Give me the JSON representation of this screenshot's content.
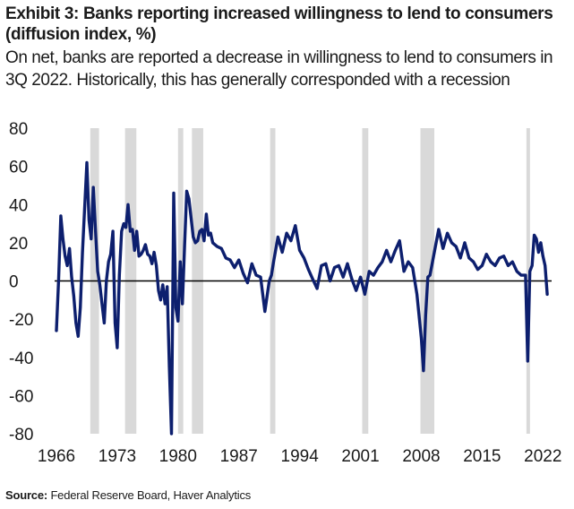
{
  "header": {
    "title": "Exhibit 3: Banks reporting increased willingness to lend to consumers (diffusion index, %)",
    "subtitle": "On net, banks are reported a decrease in willingness to lend to consumers in 3Q 2022. Historically, this has generally corresponded with a recession"
  },
  "footer": {
    "source_label": "Source:",
    "source_text": "Federal Reserve Board, Haver Analytics"
  },
  "chart_data": {
    "type": "line",
    "title": "Exhibit 3: Banks reporting increased willingness to lend to consumers (diffusion index, %)",
    "xlabel": "",
    "ylabel": "",
    "ylim": [
      -80,
      80
    ],
    "xlim": [
      1966,
      2023
    ],
    "yticks": [
      80,
      60,
      40,
      20,
      0,
      -20,
      -40,
      -60,
      -80
    ],
    "xticks": [
      1966,
      1973,
      1980,
      1987,
      1994,
      2001,
      2008,
      2015,
      2022
    ],
    "grid": false,
    "legend": "none",
    "colors": {
      "line": "#0d1f6e",
      "recession": "#d9d9d9",
      "zero_line": "#000000"
    },
    "recessions": [
      [
        1969.9,
        1970.9
      ],
      [
        1973.9,
        1975.2
      ],
      [
        1980.0,
        1980.6
      ],
      [
        1981.6,
        1982.9
      ],
      [
        1990.6,
        1991.2
      ],
      [
        2001.2,
        2001.9
      ],
      [
        2007.9,
        2009.5
      ],
      [
        2020.1,
        2020.4
      ]
    ],
    "series": [
      {
        "x": [
          1966.0,
          1966.25,
          1966.5,
          1966.75,
          1967.0,
          1967.25,
          1967.5,
          1967.75,
          1968.0,
          1968.25,
          1968.5,
          1968.75,
          1969.0,
          1969.25,
          1969.5,
          1969.75,
          1970.0,
          1970.25,
          1970.5,
          1970.75,
          1971.0,
          1971.25,
          1971.5,
          1971.75,
          1972.0,
          1972.25,
          1972.5,
          1972.75,
          1973.0,
          1973.25,
          1973.5,
          1973.75,
          1974.0,
          1974.25,
          1974.5,
          1974.75,
          1975.0,
          1975.25,
          1975.5,
          1975.75,
          1976.0,
          1976.25,
          1976.5,
          1976.75,
          1977.0,
          1977.25,
          1977.5,
          1977.75,
          1978.0,
          1978.25,
          1978.5,
          1978.75,
          1979.0,
          1979.25,
          1979.5,
          1979.75,
          1980.0,
          1980.25,
          1980.5,
          1980.75,
          1981.0,
          1981.25,
          1981.5,
          1981.75,
          1982.0,
          1982.25,
          1982.5,
          1982.75,
          1983.0,
          1983.25,
          1983.5,
          1983.75,
          1984.0,
          1984.5,
          1985.0,
          1985.5,
          1986.0,
          1986.5,
          1987.0,
          1987.5,
          1988.0,
          1988.5,
          1989.0,
          1989.5,
          1990.0,
          1990.5,
          1990.75,
          1991.0,
          1991.5,
          1992.0,
          1992.5,
          1993.0,
          1993.5,
          1994.0,
          1994.5,
          1995.0,
          1995.5,
          1996.0,
          1996.5,
          1997.0,
          1997.5,
          1998.0,
          1998.5,
          1999.0,
          1999.5,
          2000.0,
          2000.5,
          2001.0,
          2001.5,
          2002.0,
          2002.5,
          2003.0,
          2003.5,
          2004.0,
          2004.5,
          2005.0,
          2005.5,
          2006.0,
          2006.5,
          2007.0,
          2007.5,
          2008.0,
          2008.25,
          2008.5,
          2008.75,
          2009.0,
          2009.5,
          2010.0,
          2010.5,
          2011.0,
          2011.5,
          2012.0,
          2012.5,
          2013.0,
          2013.5,
          2014.0,
          2014.5,
          2015.0,
          2015.5,
          2016.0,
          2016.5,
          2017.0,
          2017.5,
          2018.0,
          2018.5,
          2019.0,
          2019.5,
          2020.0,
          2020.25,
          2020.5,
          2020.75,
          2021.0,
          2021.25,
          2021.5,
          2021.75,
          2022.0,
          2022.25,
          2022.5
        ],
        "values": [
          -26,
          0,
          34,
          22,
          13,
          8,
          17,
          2,
          -8,
          -22,
          -29,
          -14,
          15,
          38,
          62,
          32,
          22,
          49,
          26,
          5,
          -2,
          -12,
          -22,
          0,
          10,
          14,
          26,
          -22,
          -35,
          3,
          26,
          30,
          28,
          40,
          26,
          27,
          16,
          26,
          13,
          14,
          16,
          19,
          14,
          13,
          9,
          15,
          8,
          -5,
          -10,
          -2,
          -12,
          -3,
          -45,
          -80,
          46,
          -14,
          -21,
          10,
          -12,
          18,
          47,
          43,
          33,
          23,
          20,
          21,
          26,
          27,
          21,
          35,
          24,
          25,
          20,
          18,
          17,
          12,
          11,
          7,
          11,
          4,
          -1,
          9,
          3,
          2,
          -16,
          0,
          3,
          10,
          23,
          15,
          25,
          21,
          29,
          16,
          12,
          6,
          1,
          -4,
          8,
          9,
          0,
          7,
          8,
          2,
          9,
          1,
          -5,
          2,
          -7,
          5,
          3,
          7,
          10,
          16,
          10,
          16,
          21,
          5,
          10,
          7,
          -7,
          -30,
          -47,
          -18,
          2,
          3,
          15,
          27,
          17,
          25,
          20,
          18,
          12,
          20,
          12,
          10,
          6,
          8,
          14,
          10,
          8,
          12,
          13,
          8,
          10,
          5,
          3,
          3,
          -42,
          5,
          8,
          24,
          22,
          15,
          20,
          13,
          8,
          -7
        ]
      }
    ]
  }
}
